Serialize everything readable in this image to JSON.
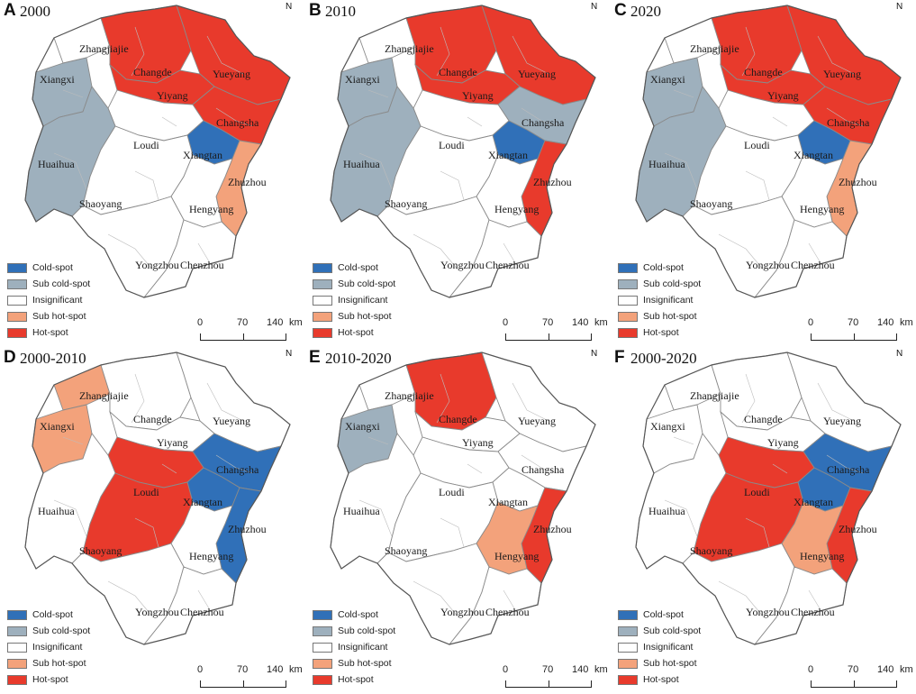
{
  "legend": [
    "Cold-spot",
    "Sub cold-spot",
    "Insignificant",
    "Sub hot-spot",
    "Hot-spot"
  ],
  "colors": {
    "cold": "#3070b8",
    "subcold": "#9eb0bd",
    "insig": "#ffffff",
    "subhot": "#f3a27b",
    "hot": "#e83a2c",
    "border": "#8a8a8a"
  },
  "scale": {
    "zero": "0",
    "mid": "70",
    "max": "140",
    "unit": "km"
  },
  "north_label": "N",
  "panels": [
    {
      "letter": "A",
      "title": "2000",
      "cities": {
        "Zhangjiajie": "Zhangjiajie",
        "Xiangxi": "Xiangxi",
        "Changde": "Changde",
        "Yueyang": "Yueyang",
        "Yiyang": "Yiyang",
        "Changsha": "Changsha",
        "Loudi": "Loudi",
        "Xiangtan": "Xiangtan",
        "Huaihua": "Huaihua",
        "Zhuzhou": "Zhuzhou",
        "Shaoyang": "Shaoyang",
        "Hengyang": "Hengyang",
        "Yongzhou": "Yongzhou",
        "Chenzhou": "Chenzhou"
      },
      "status": {
        "Zhangjiajie": "insig",
        "Xiangxi": "subcold",
        "Changde": "hot",
        "Yueyang": "hot",
        "Yiyang": "hot",
        "Changsha": "hot",
        "Loudi": "insig",
        "Xiangtan": "cold",
        "Huaihua": "subcold",
        "Zhuzhou": "subhot",
        "Shaoyang": "insig",
        "Hengyang": "insig",
        "Yongzhou": "insig",
        "Chenzhou": "insig"
      }
    },
    {
      "letter": "B",
      "title": "2010",
      "cities": {
        "Zhangjiajie": "Zhangjiajie",
        "Xiangxi": "Xiangxi",
        "Changde": "Changde",
        "Yueyang": "Yueyang",
        "Yiyang": "Yiyang",
        "Changsha": "Changsha",
        "Loudi": "Loudi",
        "Xiangtan": "Xiangtan",
        "Huaihua": "Huaihua",
        "Zhuzhou": "Zhuzhou",
        "Shaoyang": "Shaoyang",
        "Hengyang": "Hengyang",
        "Yongzhou": "Yongzhou",
        "Chenzhou": "Chenzhou"
      },
      "status": {
        "Zhangjiajie": "insig",
        "Xiangxi": "subcold",
        "Changde": "hot",
        "Yueyang": "hot",
        "Yiyang": "hot",
        "Changsha": "subcold",
        "Loudi": "insig",
        "Xiangtan": "cold",
        "Huaihua": "subcold",
        "Zhuzhou": "hot",
        "Shaoyang": "insig",
        "Hengyang": "insig",
        "Yongzhou": "insig",
        "Chenzhou": "insig"
      }
    },
    {
      "letter": "C",
      "title": "2020",
      "cities": {
        "Zhangjiajie": "Zhangjiajie",
        "Xiangxi": "Xiangxi",
        "Changde": "Changde",
        "Yueyang": "Yueyang",
        "Yiyang": "Yiyang",
        "Changsha": "Changsha",
        "Loudi": "Loudi",
        "Xiangtan": "Xiangtan",
        "Huaihua": "Huaihua",
        "Zhuzhou": "Zhuzhou",
        "Shaoyang": "Shaoyang",
        "Hengyang": "Hengyang",
        "Yongzhou": "Yongzhou",
        "Chenzhou": "Chenzhou"
      },
      "status": {
        "Zhangjiajie": "insig",
        "Xiangxi": "subcold",
        "Changde": "hot",
        "Yueyang": "hot",
        "Yiyang": "hot",
        "Changsha": "hot",
        "Loudi": "insig",
        "Xiangtan": "cold",
        "Huaihua": "subcold",
        "Zhuzhou": "subhot",
        "Shaoyang": "insig",
        "Hengyang": "insig",
        "Yongzhou": "insig",
        "Chenzhou": "insig"
      }
    },
    {
      "letter": "D",
      "title": "2000-2010",
      "cities": {
        "Zhangjiajie": "Zhangjiajie",
        "Xiangxi": "Xiangxi",
        "Changde": "Changde",
        "Yueyang": "Yueyang",
        "Yiyang": "Yiyang",
        "Changsha": "Changsha",
        "Loudi": "Loudi",
        "Xiangtan": "Xiangtan",
        "Huaihua": "Huaihua",
        "Zhuzhou": "Zhuzhou",
        "Shaoyang": "Shaoyang",
        "Hengyang": "Hengyang",
        "Yongzhou": "Yongzhou",
        "Chenzhou": "Chenzhou"
      },
      "status": {
        "Zhangjiajie": "subhot",
        "Xiangxi": "subhot",
        "Changde": "insig",
        "Yueyang": "insig",
        "Yiyang": "insig",
        "Changsha": "cold",
        "Loudi": "hot",
        "Xiangtan": "cold",
        "Huaihua": "insig",
        "Zhuzhou": "cold",
        "Shaoyang": "hot",
        "Hengyang": "insig",
        "Yongzhou": "insig",
        "Chenzhou": "insig"
      }
    },
    {
      "letter": "E",
      "title": "2010-2020",
      "cities": {
        "Zhangjiajie": "Zhangjiajie",
        "Xiangxi": "Xiangxi",
        "Changde": "Changde",
        "Yueyang": "Yueyang",
        "Yiyang": "Yiyang",
        "Changsha": "Changsha",
        "Loudi": "Loudi",
        "Xiangtan": "Xiangtan",
        "Huaihua": "Huaihua",
        "Zhuzhou": "Zhuzhou",
        "Shaoyang": "Shaoyang",
        "Hengyang": "Hengyang",
        "Yongzhou": "Yongzhou",
        "Chenzhou": "Chenzhou"
      },
      "status": {
        "Zhangjiajie": "insig",
        "Xiangxi": "subcold",
        "Changde": "hot",
        "Yueyang": "insig",
        "Yiyang": "insig",
        "Changsha": "insig",
        "Loudi": "insig",
        "Xiangtan": "insig",
        "Huaihua": "insig",
        "Zhuzhou": "hot",
        "Shaoyang": "insig",
        "Hengyang": "subhot",
        "Yongzhou": "insig",
        "Chenzhou": "insig"
      }
    },
    {
      "letter": "F",
      "title": "2000-2020",
      "cities": {
        "Zhangjiajie": "Zhangjiajie",
        "Xiangxi": "Xiangxi",
        "Changde": "Changde",
        "Yueyang": "Yueyang",
        "Yiyang": "Yiyang",
        "Changsha": "Changsha",
        "Loudi": "Loudi",
        "Xiangtan": "Xiangtan",
        "Huaihua": "Huaihua",
        "Zhuzhou": "Zhuzhou",
        "Shaoyang": "Shaoyang",
        "Hengyang": "Hengyang",
        "Yongzhou": "Yongzhou",
        "Chenzhou": "Chenzhou"
      },
      "status": {
        "Zhangjiajie": "insig",
        "Xiangxi": "insig",
        "Changde": "insig",
        "Yueyang": "insig",
        "Yiyang": "insig",
        "Changsha": "cold",
        "Loudi": "hot",
        "Xiangtan": "cold",
        "Huaihua": "insig",
        "Zhuzhou": "hot",
        "Shaoyang": "hot",
        "Hengyang": "subhot",
        "Yongzhou": "insig",
        "Chenzhou": "insig"
      }
    }
  ]
}
